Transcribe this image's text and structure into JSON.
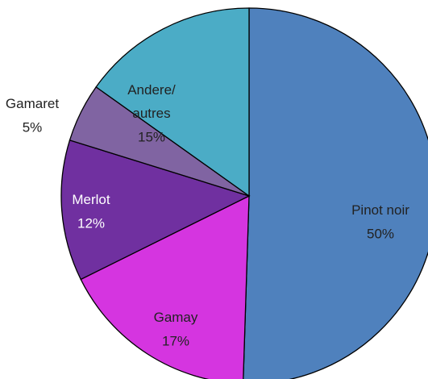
{
  "chart_data": {
    "type": "pie",
    "categories": [
      "Pinot noir",
      "Gamay",
      "Merlot",
      "Gamaret",
      "Andere/\nautres"
    ],
    "values": [
      50,
      17,
      12,
      5,
      15
    ],
    "value_labels": [
      "50%",
      "17%",
      "12%",
      "5%",
      "15%"
    ],
    "colors": [
      "#4f81bd",
      "#d535e0",
      "#7030a0",
      "#8064a2",
      "#4bacc6"
    ]
  }
}
